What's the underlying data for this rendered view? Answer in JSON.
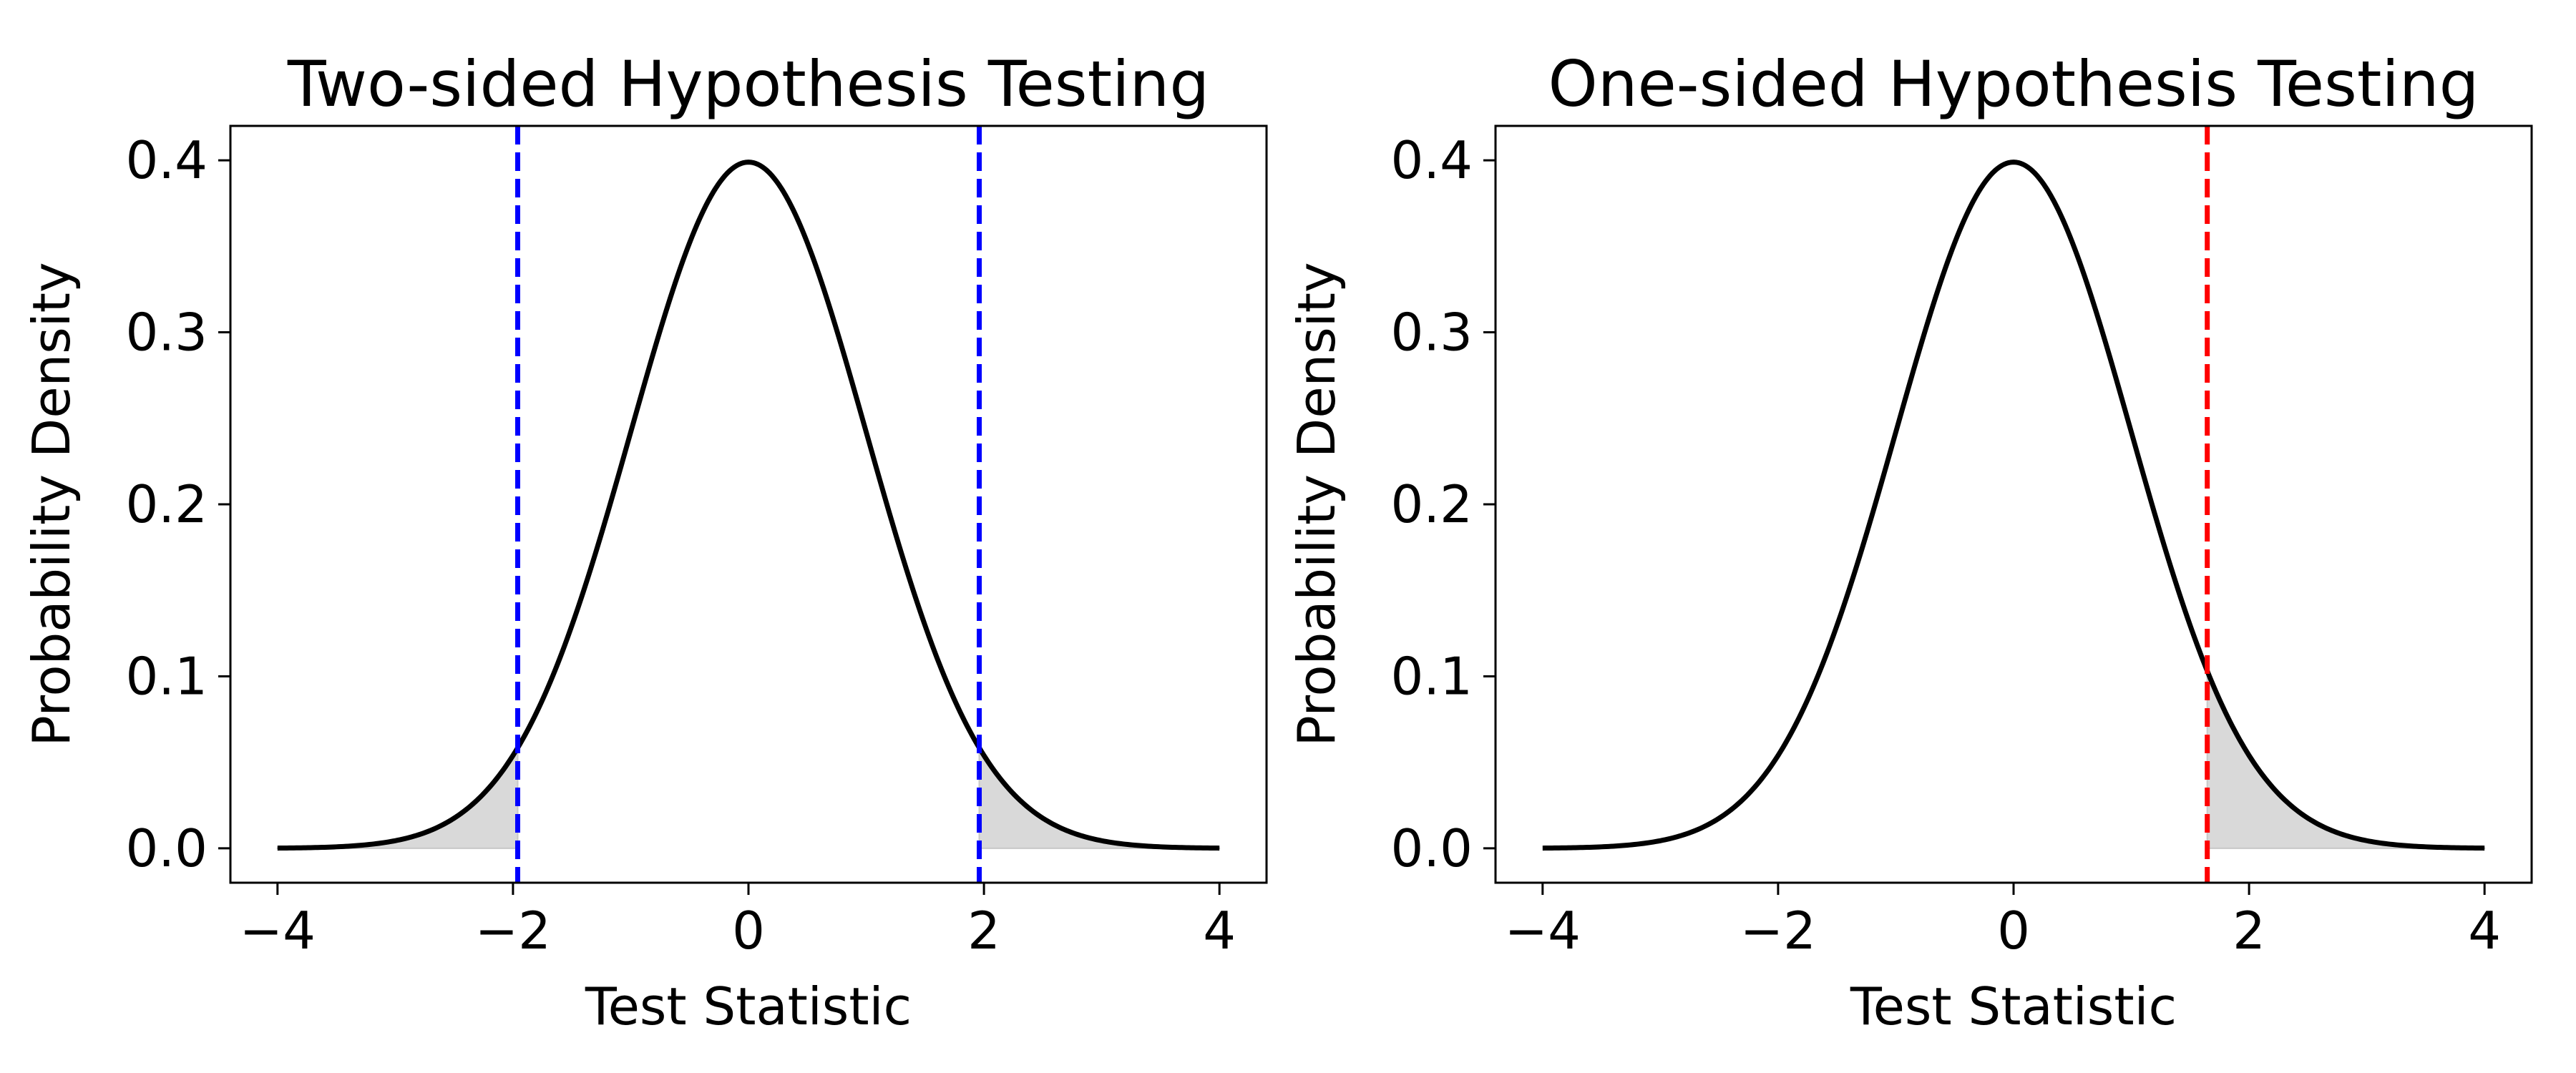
{
  "chart_data": [
    {
      "type": "line",
      "title": "Two-sided Hypothesis Testing",
      "xlabel": "Test Statistic",
      "ylabel": "Probability Density",
      "xlim": [
        -4.4,
        4.4
      ],
      "ylim": [
        -0.02,
        0.42
      ],
      "xticks": [
        -4,
        -2,
        0,
        2,
        4
      ],
      "xtick_labels": [
        "−4",
        "−2",
        "0",
        "2",
        "4"
      ],
      "yticks": [
        0.0,
        0.1,
        0.2,
        0.3,
        0.4
      ],
      "ytick_labels": [
        "0.0",
        "0.1",
        "0.2",
        "0.3",
        "0.4"
      ],
      "grid": false,
      "curve": {
        "distribution": "standard normal pdf",
        "mean": 0,
        "sd": 1,
        "x_range": [
          -4,
          4
        ],
        "color": "#000000"
      },
      "critical_values": [
        {
          "x": -1.96,
          "color": "#0000ff",
          "style": "dashed"
        },
        {
          "x": 1.96,
          "color": "#0000ff",
          "style": "dashed"
        }
      ],
      "shaded_regions": [
        {
          "from": -4,
          "to": -1.96,
          "color": "#d9d9d9"
        },
        {
          "from": 1.96,
          "to": 4,
          "color": "#d9d9d9"
        }
      ]
    },
    {
      "type": "line",
      "title": "One-sided Hypothesis Testing",
      "xlabel": "Test Statistic",
      "ylabel": "Probability Density",
      "xlim": [
        -4.4,
        4.4
      ],
      "ylim": [
        -0.02,
        0.42
      ],
      "xticks": [
        -4,
        -2,
        0,
        2,
        4
      ],
      "xtick_labels": [
        "−4",
        "−2",
        "0",
        "2",
        "4"
      ],
      "yticks": [
        0.0,
        0.1,
        0.2,
        0.3,
        0.4
      ],
      "ytick_labels": [
        "0.0",
        "0.1",
        "0.2",
        "0.3",
        "0.4"
      ],
      "grid": false,
      "curve": {
        "distribution": "standard normal pdf",
        "mean": 0,
        "sd": 1,
        "x_range": [
          -4,
          4
        ],
        "color": "#000000"
      },
      "critical_values": [
        {
          "x": 1.645,
          "color": "#ff0000",
          "style": "dashed"
        }
      ],
      "shaded_regions": [
        {
          "from": 1.645,
          "to": 4,
          "color": "#d9d9d9"
        }
      ]
    }
  ]
}
